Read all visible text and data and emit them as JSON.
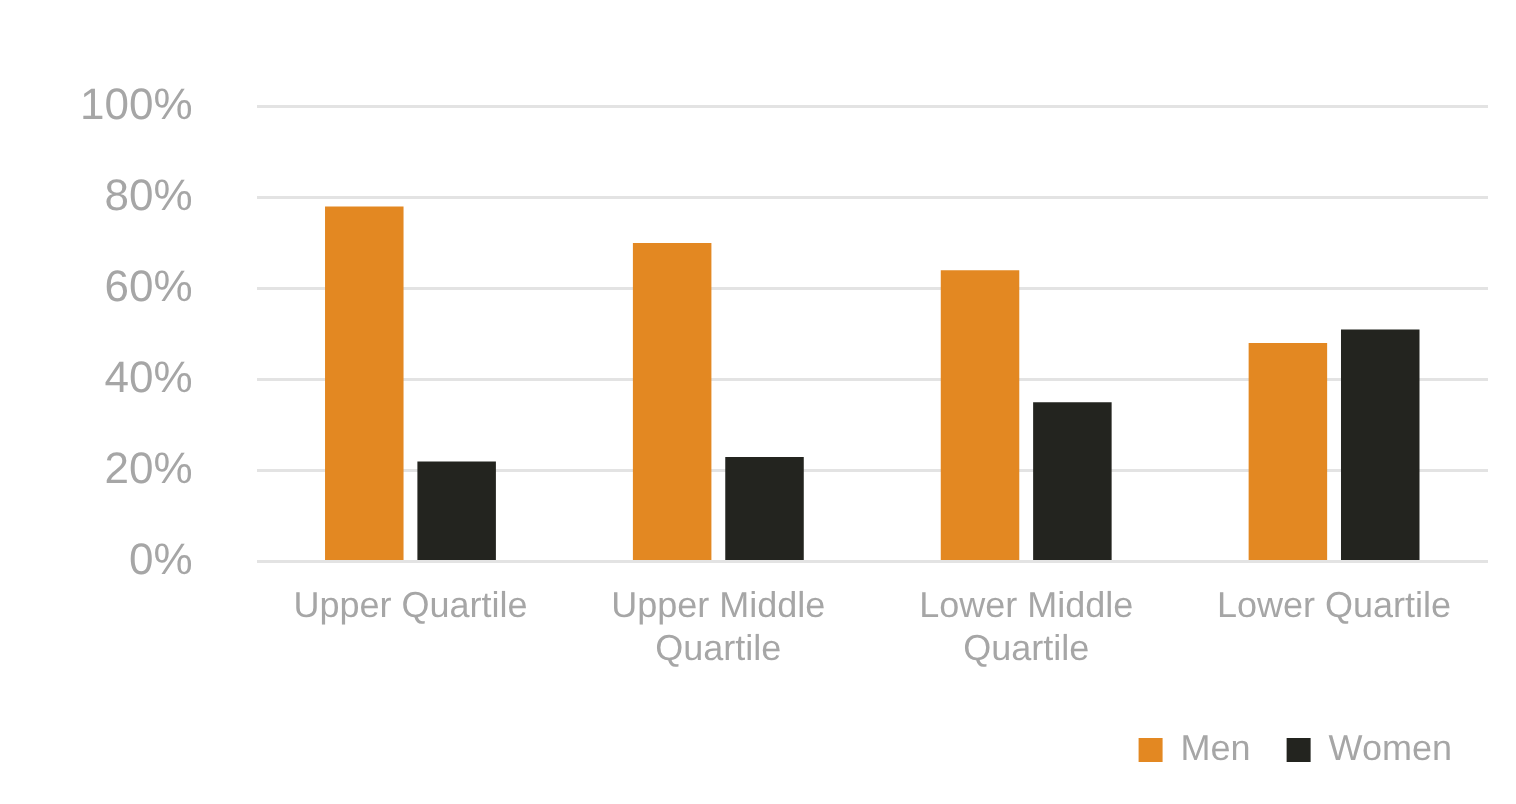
{
  "chart_data": {
    "type": "bar",
    "categories": [
      "Upper Quartile",
      "Upper Middle Quartile",
      "Lower Middle Quartile",
      "Lower Quartile"
    ],
    "series": [
      {
        "name": "Men",
        "color": "#e38822",
        "values": [
          78,
          70,
          64,
          48
        ]
      },
      {
        "name": "Women",
        "color": "#23241f",
        "values": [
          22,
          23,
          35,
          51
        ]
      }
    ],
    "ylim": [
      0,
      100
    ],
    "yticks": [
      {
        "value": 0,
        "label": "0%"
      },
      {
        "value": 20,
        "label": "20%"
      },
      {
        "value": 40,
        "label": "40%"
      },
      {
        "value": 60,
        "label": "60%"
      },
      {
        "value": 80,
        "label": "80%"
      },
      {
        "value": 100,
        "label": "100%"
      }
    ],
    "grid": "y",
    "legend": "bottom right"
  }
}
